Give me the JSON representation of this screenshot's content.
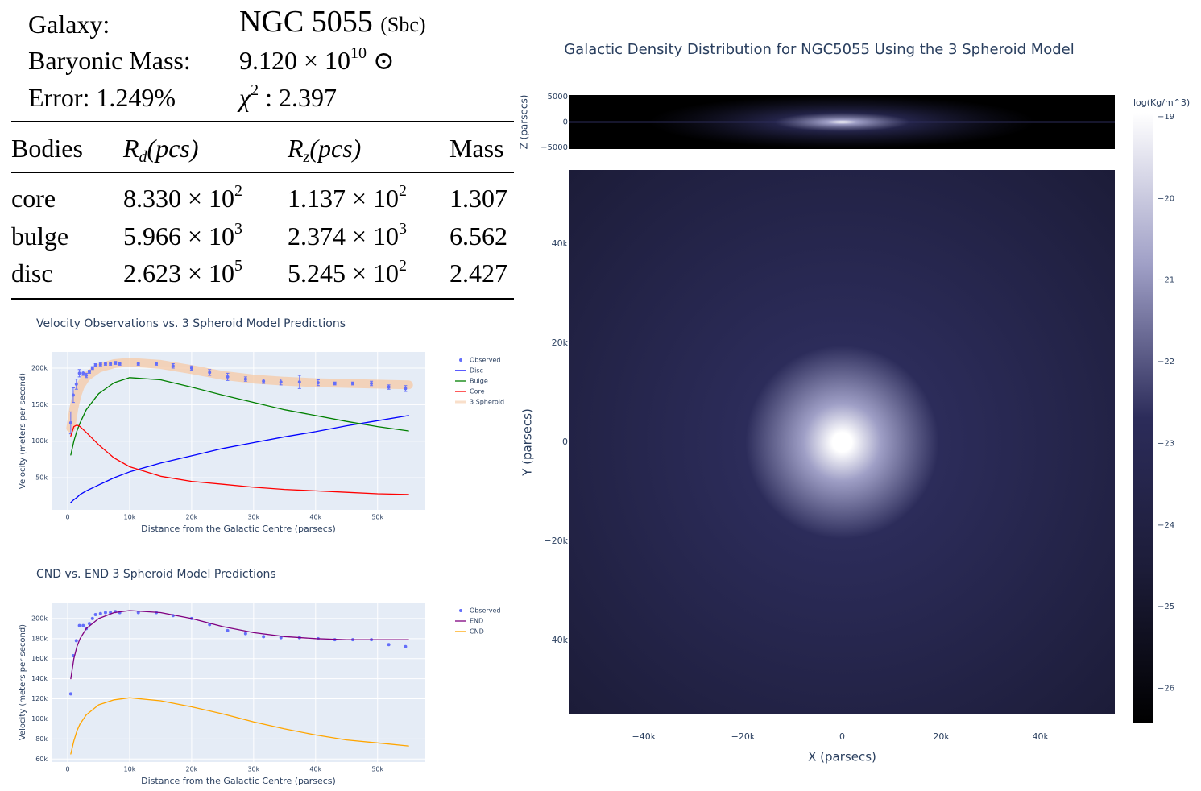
{
  "info": {
    "galaxy_label": "Galaxy:",
    "galaxy_name": "NGC 5055",
    "galaxy_type": "(Sbc)",
    "mass_label": "Baryonic Mass:",
    "mass_base": "9.120 × 10",
    "mass_exp": "10",
    "mass_unit": "⊙",
    "error": "Error: 1.249%",
    "chi_symbol": "χ",
    "chi_exp": "2",
    "chi_value": ": 2.397"
  },
  "table": {
    "header": [
      {
        "text": "Bodies"
      },
      {
        "base": "R",
        "sub": "d",
        "rest": "(pcs)"
      },
      {
        "base": "R",
        "sub": "z",
        "rest": "(pcs)"
      },
      {
        "text": "Mass"
      }
    ],
    "rows": [
      [
        "core",
        {
          "base": "8.330 × 10",
          "exp": "2"
        },
        {
          "base": "1.137 × 10",
          "exp": "2"
        },
        "1.307"
      ],
      [
        "bulge",
        {
          "base": "5.966 × 10",
          "exp": "3"
        },
        {
          "base": "2.374 × 10",
          "exp": "3"
        },
        "6.562"
      ],
      [
        "disc",
        {
          "base": "2.623 × 10",
          "exp": "5"
        },
        {
          "base": "5.245 × 10",
          "exp": "2"
        },
        "2.427"
      ]
    ]
  },
  "chart_data": [
    {
      "type": "line",
      "title": "Velocity Observations vs. 3 Spheroid Model Predictions",
      "xlabel": "Distance from the Galactic Centre (parsecs)",
      "ylabel": "Velocity (meters per second)",
      "xlim": [
        -2600,
        57700
      ],
      "ylim": [
        6000,
        222000
      ],
      "xticks": [
        0,
        {
          "value": 10000,
          "label": "10k"
        },
        {
          "value": 20000,
          "label": "20k"
        },
        {
          "value": 30000,
          "label": "30k"
        },
        {
          "value": 40000,
          "label": "40k"
        },
        {
          "value": 50000,
          "label": "50k"
        }
      ],
      "yticks": [
        {
          "value": 50000,
          "label": "50k"
        },
        {
          "value": 100000,
          "label": "100k"
        },
        {
          "value": 150000,
          "label": "150k"
        },
        {
          "value": 200000,
          "label": "200k"
        }
      ],
      "grid": true,
      "legend": "outside-right",
      "x": [
        500,
        1000,
        1500,
        2000,
        3000,
        5000,
        7500,
        10000,
        15000,
        20000,
        25000,
        30000,
        35000,
        40000,
        45000,
        50000,
        55000
      ],
      "series": [
        {
          "name": "Observed",
          "mode": "markers",
          "color": "#636efa",
          "x": [
            500,
            900,
            1400,
            1900,
            2500,
            3000,
            3500,
            4000,
            4500,
            5300,
            6100,
            6900,
            7700,
            8400,
            11400,
            14300,
            17000,
            20000,
            22900,
            25800,
            28700,
            31600,
            34400,
            37400,
            40400,
            43100,
            46000,
            49000,
            51800,
            54500
          ],
          "values": [
            125000,
            163000,
            178000,
            193000,
            193000,
            190000,
            195000,
            200000,
            204000,
            205000,
            206000,
            206000,
            207000,
            206000,
            206000,
            206000,
            203000,
            200000,
            194000,
            188000,
            185000,
            182000,
            181000,
            181000,
            180000,
            179000,
            179000,
            179000,
            174000,
            172000
          ],
          "errors": [
            15000,
            10000,
            7000,
            5000,
            3000,
            3000,
            2000,
            2000,
            2000,
            2000,
            2000,
            2000,
            2000,
            2000,
            2000,
            2000,
            3000,
            3000,
            4000,
            5000,
            3000,
            3000,
            4000,
            9000,
            4000,
            2000,
            2000,
            3000,
            3000,
            4000
          ]
        },
        {
          "name": "Disc",
          "mode": "lines",
          "color": "#0000ff",
          "values": [
            16000,
            20000,
            23000,
            27000,
            32000,
            40000,
            50000,
            58000,
            70000,
            80000,
            90000,
            98000,
            106000,
            113000,
            121000,
            128000,
            135000
          ]
        },
        {
          "name": "Bulge",
          "mode": "lines",
          "color": "#008000",
          "values": [
            81000,
            100000,
            114000,
            125000,
            143000,
            165000,
            180000,
            187000,
            184000,
            174000,
            163000,
            153000,
            143000,
            135000,
            127000,
            120000,
            114000
          ]
        },
        {
          "name": "Core",
          "mode": "lines",
          "color": "#ff0000",
          "values": [
            107000,
            120000,
            122000,
            120000,
            112000,
            95000,
            77000,
            65000,
            52000,
            45000,
            41000,
            37000,
            34000,
            32000,
            30000,
            28000,
            27000
          ]
        },
        {
          "name": "3 Spheroid",
          "mode": "lines",
          "style": "wide",
          "color": "#f5c9a6",
          "values": [
            118000,
            145000,
            163000,
            175000,
            188000,
            200000,
            206000,
            208000,
            205000,
            198000,
            190000,
            185000,
            182000,
            180000,
            179000,
            178000,
            177000
          ]
        }
      ]
    },
    {
      "type": "line",
      "title": "CND vs. END 3 Spheroid Model Predictions",
      "xlabel": "Distance from the Galactic Centre (parsecs)",
      "ylabel": "Velocity (meters per second)",
      "xlim": [
        -2600,
        57700
      ],
      "ylim": [
        57000,
        216000
      ],
      "xticks": [
        0,
        {
          "value": 10000,
          "label": "10k"
        },
        {
          "value": 20000,
          "label": "20k"
        },
        {
          "value": 30000,
          "label": "30k"
        },
        {
          "value": 40000,
          "label": "40k"
        },
        {
          "value": 50000,
          "label": "50k"
        }
      ],
      "yticks": [
        {
          "value": 60000,
          "label": "60k"
        },
        {
          "value": 80000,
          "label": "80k"
        },
        {
          "value": 100000,
          "label": "100k"
        },
        {
          "value": 120000,
          "label": "120k"
        },
        {
          "value": 140000,
          "label": "140k"
        },
        {
          "value": 160000,
          "label": "160k"
        },
        {
          "value": 180000,
          "label": "180k"
        },
        {
          "value": 200000,
          "label": "200k"
        }
      ],
      "grid": true,
      "legend": "outside-right",
      "x": [
        500,
        1000,
        1500,
        2000,
        3000,
        5000,
        7500,
        10000,
        15000,
        20000,
        25000,
        30000,
        35000,
        40000,
        45000,
        50000,
        55000
      ],
      "series": [
        {
          "name": "Observed",
          "mode": "markers",
          "color": "#636efa",
          "x": [
            500,
            900,
            1400,
            1900,
            2500,
            3000,
            3500,
            4000,
            4500,
            5300,
            6100,
            6900,
            7700,
            8400,
            11400,
            14300,
            17000,
            20000,
            22900,
            25800,
            28700,
            31600,
            34400,
            37400,
            40400,
            43100,
            46000,
            49000,
            51800,
            54500
          ],
          "values": [
            125000,
            163000,
            178000,
            193000,
            193000,
            190000,
            195000,
            200000,
            204000,
            205000,
            206000,
            206000,
            207000,
            206000,
            206000,
            206000,
            203000,
            200000,
            194000,
            188000,
            185000,
            182000,
            181000,
            181000,
            180000,
            179000,
            179000,
            179000,
            174000,
            172000
          ]
        },
        {
          "name": "END",
          "mode": "lines",
          "color": "#800080",
          "values": [
            140000,
            160000,
            172000,
            180000,
            190000,
            200000,
            206000,
            208000,
            206000,
            200000,
            192000,
            186000,
            182000,
            180000,
            179000,
            179000,
            179000
          ]
        },
        {
          "name": "CND",
          "mode": "lines",
          "color": "#ffa500",
          "values": [
            65000,
            78000,
            88000,
            95000,
            104000,
            114000,
            119000,
            121000,
            118000,
            112000,
            105000,
            97000,
            90000,
            84000,
            79000,
            76000,
            73000
          ]
        }
      ]
    },
    {
      "type": "heatmap",
      "title": "Galactic Density Distribution for NGC5055 Using the 3 Spheroid Model",
      "xlabel": "X (parsecs)",
      "ylabel": "Y (parsecs)",
      "zlabel": "Z (parsecs)",
      "colorbar_title": "log(Kg/m^3)",
      "xlim": [
        -55000,
        55000
      ],
      "ylim": [
        -55000,
        55000
      ],
      "zlim": [
        -5300,
        5300
      ],
      "clim": [
        -26.43,
        -18.95
      ],
      "xticks": [
        {
          "value": -40000,
          "label": "−40k"
        },
        {
          "value": -20000,
          "label": "−20k"
        },
        0,
        {
          "value": 20000,
          "label": "20k"
        },
        {
          "value": 40000,
          "label": "40k"
        }
      ],
      "yticks": [
        {
          "value": -40000,
          "label": "−40k"
        },
        {
          "value": -20000,
          "label": "−20k"
        },
        0,
        {
          "value": 20000,
          "label": "20k"
        },
        {
          "value": 40000,
          "label": "40k"
        }
      ],
      "zticks": [
        {
          "value": -5000,
          "label": "−5000"
        },
        0,
        5000
      ],
      "cticks": [
        {
          "value": -26,
          "label": "−26"
        },
        {
          "value": -25,
          "label": "−25"
        },
        {
          "value": -24,
          "label": "−24"
        },
        {
          "value": -23,
          "label": "−23"
        },
        {
          "value": -22,
          "label": "−22"
        },
        {
          "value": -21,
          "label": "−21"
        },
        {
          "value": -20,
          "label": "−20"
        },
        {
          "value": -19,
          "label": "−19"
        }
      ],
      "colorscale": [
        "#000000",
        "#1c1c38",
        "#2c2c5a",
        "#9f9fc6",
        "#ffffff"
      ]
    }
  ]
}
